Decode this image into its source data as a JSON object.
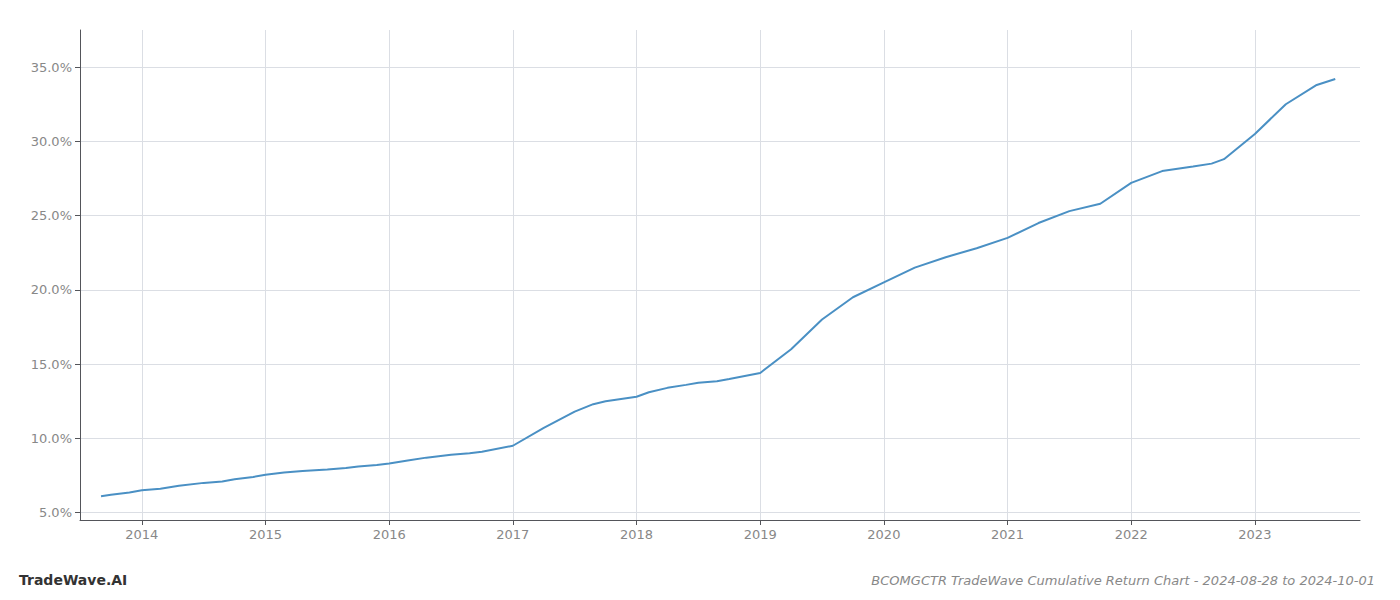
{
  "chart_data": {
    "type": "line",
    "title": "BCOMGCTR TradeWave Cumulative Return Chart - 2024-08-28 to 2024-10-01",
    "annotations": [
      "TradeWave.AI"
    ],
    "color": "#4a90c4",
    "grid": true,
    "x": [
      2013.67,
      2013.75,
      2013.9,
      2014.0,
      2014.15,
      2014.3,
      2014.5,
      2014.65,
      2014.75,
      2014.9,
      2015.0,
      2015.15,
      2015.3,
      2015.5,
      2015.65,
      2015.75,
      2015.9,
      2016.0,
      2016.15,
      2016.3,
      2016.5,
      2016.65,
      2016.75,
      2017.0,
      2017.25,
      2017.5,
      2017.65,
      2017.75,
      2018.0,
      2018.1,
      2018.25,
      2018.4,
      2018.5,
      2018.65,
      2018.75,
      2019.0,
      2019.25,
      2019.5,
      2019.75,
      2020.0,
      2020.25,
      2020.5,
      2020.75,
      2021.0,
      2021.25,
      2021.5,
      2021.75,
      2022.0,
      2022.25,
      2022.5,
      2022.65,
      2022.75,
      2023.0,
      2023.25,
      2023.5,
      2023.65
    ],
    "values": [
      6.1,
      6.2,
      6.35,
      6.5,
      6.6,
      6.8,
      7.0,
      7.1,
      7.25,
      7.4,
      7.55,
      7.7,
      7.8,
      7.9,
      8.0,
      8.1,
      8.2,
      8.3,
      8.5,
      8.7,
      8.9,
      9.0,
      9.1,
      9.5,
      10.7,
      11.8,
      12.3,
      12.5,
      12.8,
      13.1,
      13.4,
      13.6,
      13.75,
      13.85,
      14.0,
      14.4,
      16.0,
      18.0,
      19.5,
      20.5,
      21.5,
      22.2,
      22.8,
      23.5,
      24.5,
      25.3,
      25.8,
      27.2,
      28.0,
      28.3,
      28.5,
      28.8,
      30.5,
      32.5,
      33.8,
      34.2
    ],
    "xlim": [
      2013.5,
      2023.85
    ],
    "xticks": [
      2014,
      2015,
      2016,
      2017,
      2018,
      2019,
      2020,
      2021,
      2022,
      2023
    ],
    "ylim": [
      4.5,
      37.5
    ],
    "yticks": [
      {
        "value": 5.0,
        "label": "5.0%"
      },
      {
        "value": 10.0,
        "label": "10.0%"
      },
      {
        "value": 15.0,
        "label": "15.0%"
      },
      {
        "value": 20.0,
        "label": "20.0%"
      },
      {
        "value": 25.0,
        "label": "25.0%"
      },
      {
        "value": 30.0,
        "label": "30.0%"
      },
      {
        "value": 35.0,
        "label": "35.0%"
      }
    ]
  }
}
